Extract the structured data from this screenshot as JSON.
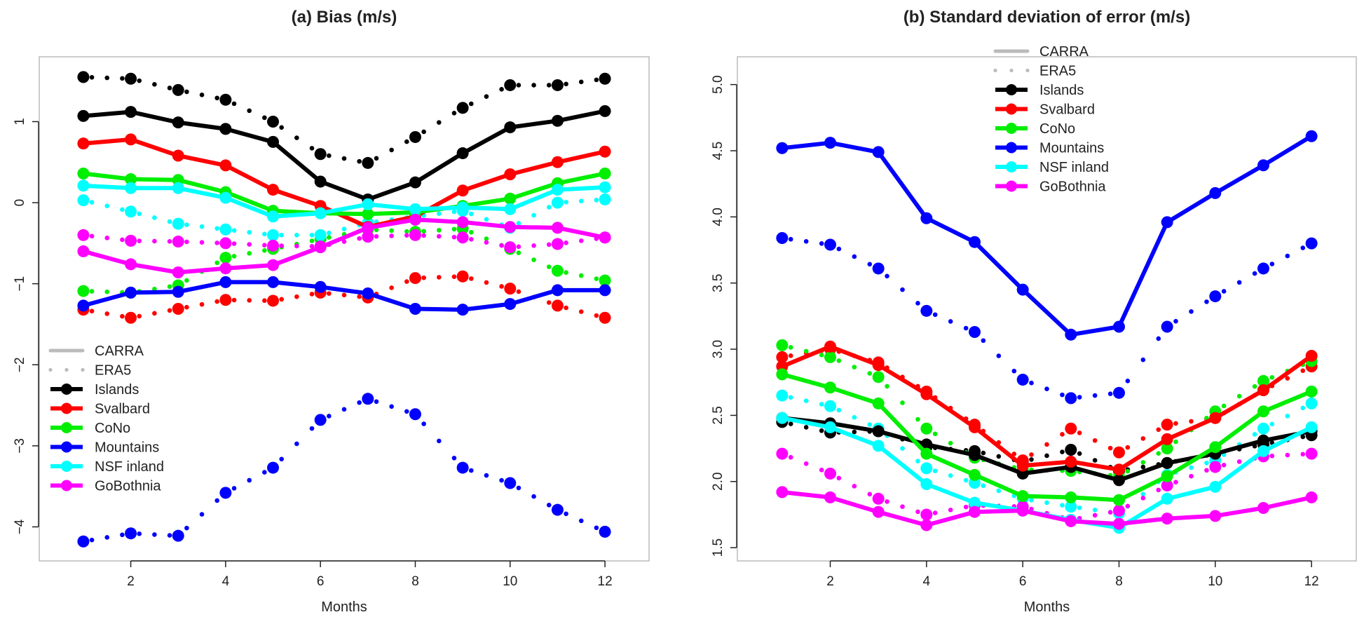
{
  "chart_data": [
    {
      "type": "line",
      "title": "(a) Bias (m/s)",
      "xlabel": "Months",
      "ylabel": "",
      "x": [
        1,
        2,
        3,
        4,
        5,
        6,
        7,
        8,
        9,
        10,
        11,
        12
      ],
      "xticks": [
        2,
        4,
        6,
        8,
        10,
        12
      ],
      "xlim": [
        0.07,
        12.93
      ],
      "yticks": [
        -4,
        -3,
        -2,
        -1,
        0,
        1
      ],
      "ylim": [
        -4.42,
        1.8
      ],
      "grid": false,
      "legend_position": "bottom-left",
      "legend": {
        "styles": [
          {
            "label": "CARRA",
            "kind": "solid"
          },
          {
            "label": "ERA5",
            "kind": "dotted"
          }
        ],
        "regions": [
          {
            "label": "Islands",
            "color": "#000000"
          },
          {
            "label": "Svalbard",
            "color": "#ff0000"
          },
          {
            "label": "CoNo",
            "color": "#00ee00"
          },
          {
            "label": "Mountains",
            "color": "#0000ff"
          },
          {
            "label": "NSF inland",
            "color": "#00ffff"
          },
          {
            "label": "GoBothnia",
            "color": "#ff00ff"
          }
        ]
      },
      "series": [
        {
          "name": "Islands",
          "dataset": "CARRA",
          "color": "#000000",
          "values": [
            1.07,
            1.12,
            0.99,
            0.91,
            0.75,
            0.26,
            0.04,
            0.25,
            0.61,
            0.93,
            1.01,
            1.13
          ]
        },
        {
          "name": "Svalbard",
          "dataset": "CARRA",
          "color": "#ff0000",
          "values": [
            0.73,
            0.78,
            0.58,
            0.46,
            0.16,
            -0.04,
            -0.3,
            -0.17,
            0.15,
            0.35,
            0.5,
            0.63
          ]
        },
        {
          "name": "CoNo",
          "dataset": "CARRA",
          "color": "#00ee00",
          "values": [
            0.36,
            0.29,
            0.28,
            0.13,
            -0.1,
            -0.13,
            -0.14,
            -0.12,
            -0.04,
            0.05,
            0.24,
            0.36
          ]
        },
        {
          "name": "Mountains",
          "dataset": "CARRA",
          "color": "#0000ff",
          "values": [
            -1.27,
            -1.11,
            -1.1,
            -0.98,
            -0.98,
            -1.04,
            -1.12,
            -1.31,
            -1.32,
            -1.25,
            -1.08,
            -1.08
          ]
        },
        {
          "name": "NSF inland",
          "dataset": "CARRA",
          "color": "#00ffff",
          "values": [
            0.21,
            0.18,
            0.18,
            0.06,
            -0.17,
            -0.13,
            -0.02,
            -0.08,
            -0.06,
            -0.08,
            0.16,
            0.19
          ]
        },
        {
          "name": "GoBothnia",
          "dataset": "CARRA",
          "color": "#ff00ff",
          "values": [
            -0.6,
            -0.76,
            -0.86,
            -0.81,
            -0.77,
            -0.55,
            -0.31,
            -0.21,
            -0.24,
            -0.3,
            -0.31,
            -0.43
          ]
        },
        {
          "name": "Islands",
          "dataset": "ERA5",
          "color": "#000000",
          "values": [
            1.55,
            1.53,
            1.39,
            1.27,
            1.0,
            0.6,
            0.49,
            0.81,
            1.17,
            1.45,
            1.45,
            1.53
          ]
        },
        {
          "name": "Svalbard",
          "dataset": "ERA5",
          "color": "#ff0000",
          "values": [
            -1.32,
            -1.42,
            -1.31,
            -1.2,
            -1.21,
            -1.11,
            -1.17,
            -0.93,
            -0.91,
            -1.06,
            -1.27,
            -1.42
          ]
        },
        {
          "name": "CoNo",
          "dataset": "ERA5",
          "color": "#00ee00",
          "values": [
            -1.09,
            -1.11,
            -1.02,
            -0.68,
            -0.57,
            -0.45,
            -0.33,
            -0.36,
            -0.32,
            -0.57,
            -0.84,
            -0.96
          ]
        },
        {
          "name": "Mountains",
          "dataset": "ERA5",
          "color": "#0000ff",
          "values": [
            -4.18,
            -4.08,
            -4.11,
            -3.58,
            -3.27,
            -2.68,
            -2.42,
            -2.61,
            -3.27,
            -3.46,
            -3.79,
            -4.06
          ]
        },
        {
          "name": "NSF inland",
          "dataset": "ERA5",
          "color": "#00ffff",
          "values": [
            0.03,
            -0.11,
            -0.26,
            -0.33,
            -0.4,
            -0.4,
            -0.25,
            -0.17,
            -0.1,
            -0.31,
            0.0,
            0.04
          ]
        },
        {
          "name": "GoBothnia",
          "dataset": "ERA5",
          "color": "#ff00ff",
          "values": [
            -0.4,
            -0.47,
            -0.48,
            -0.5,
            -0.53,
            -0.54,
            -0.42,
            -0.4,
            -0.43,
            -0.55,
            -0.51,
            -0.43
          ]
        }
      ]
    },
    {
      "type": "line",
      "title": "(b) Standard deviation of error (m/s)",
      "xlabel": "Months",
      "ylabel": "",
      "x": [
        1,
        2,
        3,
        4,
        5,
        6,
        7,
        8,
        9,
        10,
        11,
        12
      ],
      "xticks": [
        2,
        4,
        6,
        8,
        10,
        12
      ],
      "xlim": [
        0.07,
        12.93
      ],
      "yticks": [
        1.5,
        2.0,
        2.5,
        3.0,
        3.5,
        4.0,
        4.5,
        5.0
      ],
      "ytick_labels": [
        "1.5",
        "2.0",
        "2.5",
        "3.0",
        "3.5",
        "4.0",
        "4.5",
        "5.0"
      ],
      "ylim": [
        1.4,
        5.21
      ],
      "grid": false,
      "legend_position": "top-center",
      "legend": {
        "styles": [
          {
            "label": "CARRA",
            "kind": "solid"
          },
          {
            "label": "ERA5",
            "kind": "dotted"
          }
        ],
        "regions": [
          {
            "label": "Islands",
            "color": "#000000"
          },
          {
            "label": "Svalbard",
            "color": "#ff0000"
          },
          {
            "label": "CoNo",
            "color": "#00ee00"
          },
          {
            "label": "Mountains",
            "color": "#0000ff"
          },
          {
            "label": "NSF inland",
            "color": "#00ffff"
          },
          {
            "label": "GoBothnia",
            "color": "#ff00ff"
          }
        ]
      },
      "series": [
        {
          "name": "Islands",
          "dataset": "CARRA",
          "color": "#000000",
          "values": [
            2.48,
            2.44,
            2.38,
            2.28,
            2.2,
            2.06,
            2.11,
            2.01,
            2.14,
            2.21,
            2.31,
            2.38
          ]
        },
        {
          "name": "Svalbard",
          "dataset": "CARRA",
          "color": "#ff0000",
          "values": [
            2.87,
            3.02,
            2.88,
            2.66,
            2.41,
            2.12,
            2.15,
            2.09,
            2.32,
            2.48,
            2.69,
            2.95
          ]
        },
        {
          "name": "CoNo",
          "dataset": "CARRA",
          "color": "#00ee00",
          "values": [
            2.81,
            2.71,
            2.59,
            2.21,
            2.05,
            1.89,
            1.88,
            1.86,
            2.04,
            2.26,
            2.53,
            2.68
          ]
        },
        {
          "name": "Mountains",
          "dataset": "CARRA",
          "color": "#0000ff",
          "values": [
            4.52,
            4.56,
            4.49,
            3.99,
            3.81,
            3.45,
            3.11,
            3.17,
            3.96,
            4.18,
            4.39,
            4.61
          ]
        },
        {
          "name": "NSF inland",
          "dataset": "CARRA",
          "color": "#00ffff",
          "values": [
            2.48,
            2.41,
            2.27,
            1.98,
            1.84,
            1.78,
            1.71,
            1.65,
            1.87,
            1.96,
            2.23,
            2.41
          ]
        },
        {
          "name": "GoBothnia",
          "dataset": "CARRA",
          "color": "#ff00ff",
          "values": [
            1.92,
            1.88,
            1.77,
            1.67,
            1.77,
            1.78,
            1.7,
            1.68,
            1.72,
            1.74,
            1.8,
            1.88
          ]
        },
        {
          "name": "Islands",
          "dataset": "ERA5",
          "color": "#000000",
          "values": [
            2.45,
            2.37,
            2.38,
            2.26,
            2.23,
            2.15,
            2.24,
            2.08,
            2.14,
            2.21,
            2.28,
            2.35
          ]
        },
        {
          "name": "Svalbard",
          "dataset": "ERA5",
          "color": "#ff0000",
          "values": [
            2.94,
            3.0,
            2.9,
            2.68,
            2.43,
            2.16,
            2.4,
            2.22,
            2.43,
            2.48,
            2.69,
            2.87
          ]
        },
        {
          "name": "CoNo",
          "dataset": "ERA5",
          "color": "#00ee00",
          "values": [
            3.03,
            2.94,
            2.79,
            2.4,
            2.18,
            2.09,
            2.08,
            2.04,
            2.25,
            2.53,
            2.76,
            2.91
          ]
        },
        {
          "name": "Mountains",
          "dataset": "ERA5",
          "color": "#0000ff",
          "values": [
            3.84,
            3.79,
            3.61,
            3.29,
            3.13,
            2.77,
            2.63,
            2.67,
            3.17,
            3.4,
            3.61,
            3.8
          ]
        },
        {
          "name": "NSF inland",
          "dataset": "ERA5",
          "color": "#00ffff",
          "values": [
            2.65,
            2.57,
            2.4,
            2.1,
            1.99,
            1.87,
            1.81,
            1.76,
            2.05,
            2.16,
            2.4,
            2.59
          ]
        },
        {
          "name": "GoBothnia",
          "dataset": "ERA5",
          "color": "#ff00ff",
          "values": [
            2.21,
            2.06,
            1.87,
            1.75,
            1.82,
            1.81,
            1.71,
            1.78,
            1.97,
            2.11,
            2.19,
            2.21
          ]
        }
      ]
    }
  ]
}
